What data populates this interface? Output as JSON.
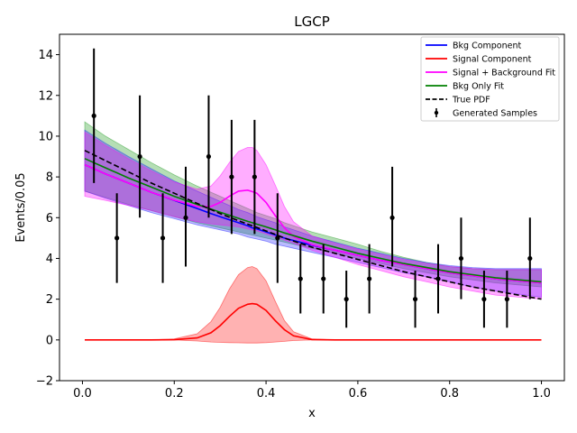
{
  "chart_data": {
    "type": "line",
    "title": "LGCP",
    "xlabel": "x",
    "ylabel": "Events/0.05",
    "xlim": [
      -0.05,
      1.05
    ],
    "ylim": [
      -2,
      15
    ],
    "xticks": [
      "0.0",
      "0.2",
      "0.4",
      "0.6",
      "0.8",
      "1.0"
    ],
    "yticks": [
      "−2",
      "0",
      "2",
      "4",
      "6",
      "8",
      "10",
      "12",
      "14"
    ],
    "grid": false,
    "legend_position": "top-right",
    "x_grid": [
      0.005,
      0.05,
      0.1,
      0.15,
      0.2,
      0.25,
      0.28,
      0.3,
      0.32,
      0.34,
      0.36,
      0.37,
      0.38,
      0.4,
      0.42,
      0.44,
      0.46,
      0.5,
      0.55,
      0.6,
      0.65,
      0.7,
      0.75,
      0.8,
      0.85,
      0.9,
      0.95,
      1.0
    ],
    "series": [
      {
        "name": "Bkg Component",
        "color": "#0000ff",
        "style": "solid",
        "values": [
          8.6,
          8.15,
          7.7,
          7.25,
          6.85,
          6.45,
          6.2,
          6.05,
          5.9,
          5.75,
          5.6,
          5.5,
          5.45,
          5.3,
          5.15,
          5.0,
          4.88,
          4.65,
          4.4,
          4.15,
          3.9,
          3.7,
          3.5,
          3.3,
          3.15,
          3.0,
          2.9,
          2.8
        ]
      },
      {
        "name": "Signal Component",
        "color": "#ff0000",
        "style": "solid",
        "values": [
          0.0,
          0.0,
          0.0,
          0.0,
          0.01,
          0.1,
          0.35,
          0.7,
          1.15,
          1.55,
          1.75,
          1.78,
          1.75,
          1.45,
          0.95,
          0.5,
          0.2,
          0.02,
          0.0,
          0.0,
          0.0,
          0.0,
          0.0,
          0.0,
          0.0,
          0.0,
          0.0,
          0.0
        ]
      },
      {
        "name": "Signal + Background Fit",
        "color": "#ff00ff",
        "style": "solid",
        "values": [
          8.6,
          8.15,
          7.7,
          7.25,
          6.86,
          6.55,
          6.55,
          6.75,
          7.05,
          7.3,
          7.35,
          7.28,
          7.2,
          6.75,
          6.1,
          5.5,
          5.08,
          4.67,
          4.4,
          4.15,
          3.9,
          3.7,
          3.5,
          3.3,
          3.15,
          3.0,
          2.9,
          2.8
        ]
      },
      {
        "name": "Bkg Only Fit",
        "color": "#008000",
        "style": "solid",
        "values": [
          8.9,
          8.45,
          7.95,
          7.5,
          7.05,
          6.65,
          6.42,
          6.27,
          6.12,
          5.97,
          5.82,
          5.75,
          5.68,
          5.55,
          5.4,
          5.25,
          5.12,
          4.85,
          4.55,
          4.25,
          4.0,
          3.75,
          3.55,
          3.35,
          3.2,
          3.05,
          2.95,
          2.85
        ]
      },
      {
        "name": "True PDF",
        "color": "#000000",
        "style": "dashed",
        "values": [
          9.3,
          8.8,
          8.25,
          7.7,
          7.2,
          6.7,
          6.4,
          6.2,
          6.02,
          5.85,
          5.68,
          5.6,
          5.52,
          5.35,
          5.18,
          5.0,
          4.85,
          4.55,
          4.25,
          3.95,
          3.65,
          3.35,
          3.1,
          2.85,
          2.6,
          2.4,
          2.2,
          2.0
        ]
      }
    ],
    "bands": [
      {
        "name": "Bkg Only Fit band",
        "color": "#2ca02c",
        "opacity": 0.35,
        "lower": [
          7.3,
          7.0,
          6.65,
          6.35,
          6.05,
          5.75,
          5.6,
          5.5,
          5.4,
          5.3,
          5.2,
          5.15,
          5.1,
          5.0,
          4.9,
          4.8,
          4.7,
          4.5,
          4.25,
          4.0,
          3.75,
          3.5,
          3.3,
          3.1,
          2.95,
          2.8,
          2.7,
          2.6
        ],
        "upper": [
          10.7,
          10.0,
          9.35,
          8.7,
          8.1,
          7.55,
          7.25,
          7.05,
          6.85,
          6.65,
          6.45,
          6.35,
          6.25,
          6.1,
          5.95,
          5.75,
          5.6,
          5.3,
          5.0,
          4.7,
          4.35,
          4.05,
          3.8,
          3.6,
          3.5,
          3.45,
          3.45,
          3.45
        ]
      },
      {
        "name": "Bkg Component band",
        "color": "#1f1fff",
        "opacity": 0.3,
        "lower": [
          7.3,
          6.95,
          6.6,
          6.25,
          5.95,
          5.65,
          5.5,
          5.4,
          5.3,
          5.2,
          5.05,
          5.0,
          4.95,
          4.85,
          4.7,
          4.6,
          4.5,
          4.3,
          4.05,
          3.8,
          3.55,
          3.3,
          3.1,
          2.85,
          2.6,
          2.4,
          2.25,
          2.1
        ],
        "upper": [
          10.3,
          9.65,
          9.0,
          8.4,
          7.8,
          7.3,
          7.0,
          6.8,
          6.6,
          6.4,
          6.25,
          6.15,
          6.05,
          5.9,
          5.75,
          5.55,
          5.4,
          5.1,
          4.8,
          4.5,
          4.25,
          4.0,
          3.8,
          3.65,
          3.55,
          3.5,
          3.5,
          3.5
        ]
      },
      {
        "name": "Signal + Background band",
        "color": "#ff00ff",
        "opacity": 0.32,
        "lower": [
          7.05,
          6.85,
          6.6,
          6.35,
          6.05,
          5.8,
          5.7,
          5.65,
          5.6,
          5.55,
          5.45,
          5.4,
          5.35,
          5.2,
          5.05,
          4.9,
          4.75,
          4.4,
          4.05,
          3.7,
          3.4,
          3.1,
          2.85,
          2.6,
          2.4,
          2.2,
          2.1,
          2.0
        ],
        "upper": [
          10.2,
          9.55,
          8.9,
          8.3,
          7.75,
          7.4,
          7.55,
          8.05,
          8.7,
          9.25,
          9.45,
          9.45,
          9.3,
          8.6,
          7.6,
          6.55,
          5.8,
          5.1,
          4.75,
          4.45,
          4.2,
          3.95,
          3.75,
          3.6,
          3.5,
          3.45,
          3.45,
          3.45
        ]
      },
      {
        "name": "Signal Component band",
        "color": "#ff0000",
        "opacity": 0.3,
        "lower": [
          0.0,
          0.0,
          0.0,
          0.0,
          0.0,
          -0.05,
          -0.1,
          -0.12,
          -0.13,
          -0.14,
          -0.15,
          -0.15,
          -0.15,
          -0.13,
          -0.1,
          -0.07,
          -0.03,
          0.0,
          0.0,
          0.0,
          0.0,
          0.0,
          0.0,
          0.0,
          0.0,
          0.0,
          0.0,
          0.0
        ],
        "upper": [
          0.0,
          0.0,
          0.0,
          0.0,
          0.05,
          0.3,
          0.9,
          1.6,
          2.5,
          3.2,
          3.55,
          3.6,
          3.5,
          2.9,
          1.9,
          0.95,
          0.4,
          0.05,
          0.0,
          0.0,
          0.0,
          0.0,
          0.0,
          0.0,
          0.0,
          0.0,
          0.0,
          0.0
        ]
      }
    ],
    "samples": {
      "name": "Generated Samples",
      "x": [
        0.025,
        0.075,
        0.125,
        0.175,
        0.225,
        0.275,
        0.325,
        0.375,
        0.425,
        0.475,
        0.525,
        0.575,
        0.625,
        0.675,
        0.725,
        0.775,
        0.825,
        0.875,
        0.925,
        0.975
      ],
      "y": [
        11,
        5,
        9,
        5,
        6,
        9,
        8,
        8,
        5,
        3,
        3,
        2,
        3,
        6,
        2,
        3,
        4,
        2,
        2,
        4
      ],
      "yerr_low": [
        3.3,
        2.2,
        3.0,
        2.2,
        2.4,
        3.0,
        2.8,
        2.8,
        2.2,
        1.7,
        1.7,
        1.4,
        1.7,
        2.4,
        1.4,
        1.7,
        2.0,
        1.4,
        1.4,
        2.0
      ],
      "yerr_high": [
        3.3,
        2.2,
        3.0,
        2.2,
        2.5,
        3.0,
        2.8,
        2.8,
        2.2,
        1.7,
        1.7,
        1.4,
        1.7,
        2.5,
        1.4,
        1.7,
        2.0,
        1.4,
        1.4,
        2.0
      ]
    },
    "legend": [
      {
        "label": "Bkg Component",
        "color": "#0000ff",
        "kind": "line"
      },
      {
        "label": "Signal Component",
        "color": "#ff0000",
        "kind": "line"
      },
      {
        "label": "Signal + Background Fit",
        "color": "#ff00ff",
        "kind": "line"
      },
      {
        "label": "Bkg Only Fit",
        "color": "#008000",
        "kind": "line"
      },
      {
        "label": "True PDF",
        "color": "#000000",
        "kind": "dashed"
      },
      {
        "label": "Generated Samples",
        "color": "#000000",
        "kind": "errorbar"
      }
    ]
  }
}
